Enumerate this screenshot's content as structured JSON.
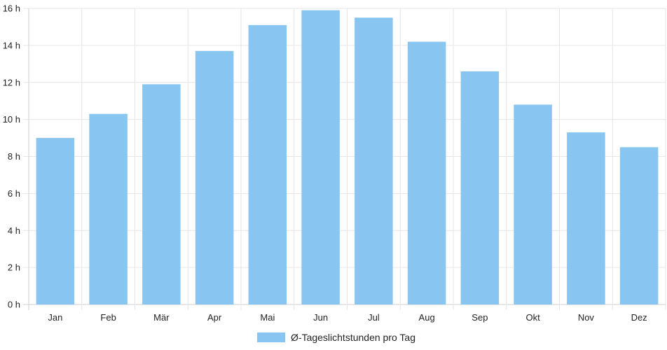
{
  "chart_data": {
    "type": "bar",
    "categories": [
      "Jan",
      "Feb",
      "Mär",
      "Apr",
      "Mai",
      "Jun",
      "Jul",
      "Aug",
      "Sep",
      "Okt",
      "Nov",
      "Dez"
    ],
    "series": [
      {
        "name": "Ø-Tageslichtstunden pro Tag",
        "values": [
          9.0,
          10.3,
          11.9,
          13.7,
          15.1,
          15.9,
          15.5,
          14.2,
          12.6,
          10.8,
          9.3,
          8.5
        ],
        "color": "#88c6f1"
      }
    ],
    "y_ticks": [
      "0 h",
      "2 h",
      "4 h",
      "6 h",
      "8 h",
      "10 h",
      "12 h",
      "14 h",
      "16 h"
    ],
    "ylim": [
      0,
      16
    ],
    "y_unit": "h",
    "title": "",
    "xlabel": "",
    "ylabel": "",
    "grid": true,
    "legend_position": "bottom-center"
  }
}
